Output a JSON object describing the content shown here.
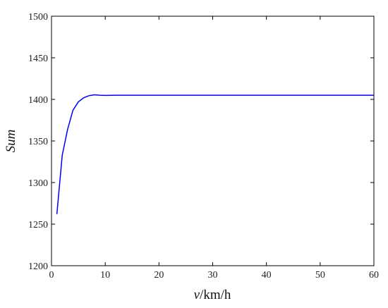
{
  "chart_data": {
    "type": "line",
    "title": "",
    "xlabel_var": "v",
    "xlabel_unit": "/km/h",
    "ylabel": "Sum",
    "xlim": [
      0,
      60
    ],
    "ylim": [
      1200,
      1500
    ],
    "xticks": [
      0,
      10,
      20,
      30,
      40,
      50,
      60
    ],
    "yticks": [
      1200,
      1250,
      1300,
      1350,
      1400,
      1450,
      1500
    ],
    "grid": false,
    "line_color": "#0000ff",
    "series": [
      {
        "x": [
          1,
          2,
          3,
          4,
          5,
          6,
          7,
          8,
          9,
          10,
          12,
          15,
          20,
          30,
          40,
          50,
          60
        ],
        "y": [
          1262,
          1333,
          1364,
          1387,
          1397,
          1402,
          1404.5,
          1405.5,
          1405,
          1404.8,
          1405,
          1405,
          1405,
          1405,
          1405,
          1405,
          1405
        ]
      }
    ]
  }
}
